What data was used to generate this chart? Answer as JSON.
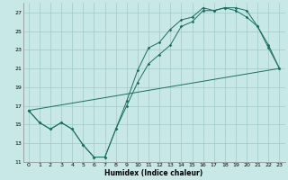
{
  "xlabel": "Humidex (Indice chaleur)",
  "bg_color": "#c8e8e8",
  "grid_color": "#a0c8c8",
  "line_color": "#1a6e60",
  "xlim": [
    -0.5,
    23.5
  ],
  "ylim": [
    11,
    28
  ],
  "xticks": [
    0,
    1,
    2,
    3,
    4,
    5,
    6,
    7,
    8,
    9,
    10,
    11,
    12,
    13,
    14,
    15,
    16,
    17,
    18,
    19,
    20,
    21,
    22,
    23
  ],
  "yticks": [
    11,
    13,
    15,
    17,
    19,
    21,
    23,
    25,
    27
  ],
  "line1_x": [
    0,
    1,
    2,
    3,
    4,
    5,
    6,
    7,
    8,
    9,
    10,
    11,
    12,
    13,
    14,
    15,
    16,
    17,
    18,
    19,
    20,
    21,
    22,
    23
  ],
  "line1_y": [
    16.5,
    15.2,
    14.5,
    15.2,
    14.5,
    12.8,
    11.5,
    11.5,
    14.5,
    17.5,
    20.8,
    23.2,
    23.8,
    25.2,
    26.2,
    26.5,
    27.5,
    27.2,
    27.5,
    27.2,
    26.5,
    25.5,
    23.2,
    21.0
  ],
  "line2_x": [
    0,
    1,
    2,
    3,
    4,
    5,
    6,
    7,
    8,
    9,
    10,
    11,
    12,
    13,
    14,
    15,
    16,
    17,
    18,
    19,
    20,
    21,
    22,
    23
  ],
  "line2_y": [
    16.5,
    15.2,
    14.5,
    15.2,
    14.5,
    12.8,
    11.5,
    11.5,
    14.5,
    17.0,
    19.5,
    21.5,
    22.5,
    23.5,
    25.5,
    26.0,
    27.2,
    27.2,
    27.5,
    27.5,
    27.2,
    25.5,
    23.5,
    21.0
  ],
  "line3_x": [
    0,
    23
  ],
  "line3_y": [
    16.5,
    21.0
  ]
}
